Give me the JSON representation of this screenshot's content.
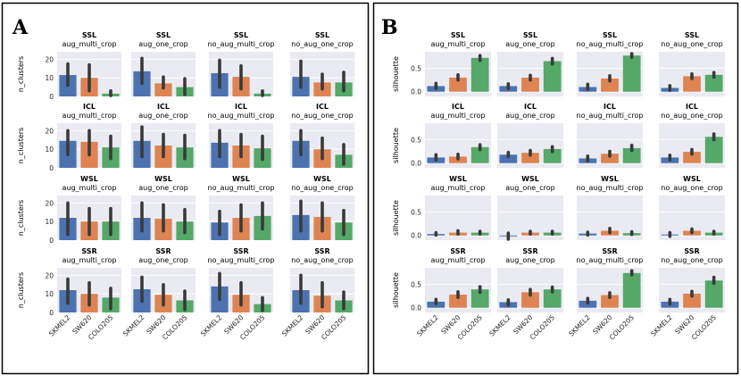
{
  "figure": {
    "panels": [
      "A",
      "B"
    ]
  },
  "colors": {
    "SKMEL2": "#4c72b0",
    "SW620": "#dd8452",
    "COLO205": "#55a868",
    "plot_bg": "#eaeaf2",
    "grid": "#ffffff",
    "error_bar": "#3a3a3a"
  },
  "chart_data": [
    {
      "panel": "A",
      "type": "bar",
      "ylabel": "n_clusters",
      "ylim": [
        0,
        24
      ],
      "yticks": [
        0,
        10,
        20
      ],
      "categories": [
        "SKMEL2",
        "SW620",
        "COLO205"
      ],
      "row_labels": [
        "SSL",
        "ICL",
        "WSL",
        "SSR"
      ],
      "col_labels": [
        "aug_multi_crop",
        "aug_one_crop",
        "no_aug_multi_crop",
        "no_aug_one_crop"
      ],
      "subplots": [
        {
          "method": "SSL",
          "setting": "aug_multi_crop",
          "values": [
            11.5,
            10,
            1.5
          ],
          "errors": [
            [
              6,
              17.5
            ],
            [
              3,
              17
            ],
            [
              0.5,
              3
            ]
          ]
        },
        {
          "method": "SSL",
          "setting": "aug_one_crop",
          "values": [
            13.5,
            7,
            5
          ],
          "errors": [
            [
              7,
              20.5
            ],
            [
              4.5,
              10.5
            ],
            [
              1,
              9.5
            ]
          ]
        },
        {
          "method": "SSL",
          "setting": "no_aug_multi_crop",
          "values": [
            12.5,
            10.5,
            1.5
          ],
          "errors": [
            [
              5,
              19.5
            ],
            [
              4,
              16.5
            ],
            [
              0.5,
              3
            ]
          ]
        },
        {
          "method": "SSL",
          "setting": "no_aug_one_crop",
          "values": [
            10.5,
            7.5,
            7.5
          ],
          "errors": [
            [
              5,
              19
            ],
            [
              4,
              12
            ],
            [
              3,
              13
            ]
          ]
        },
        {
          "method": "ICL",
          "setting": "aug_multi_crop",
          "values": [
            14.5,
            14,
            11
          ],
          "errors": [
            [
              7,
              20
            ],
            [
              7,
              20
            ],
            [
              5,
              17
            ]
          ]
        },
        {
          "method": "ICL",
          "setting": "aug_one_crop",
          "values": [
            14.5,
            12,
            11
          ],
          "errors": [
            [
              6,
              22
            ],
            [
              6,
              18
            ],
            [
              5,
              17.5
            ]
          ]
        },
        {
          "method": "ICL",
          "setting": "no_aug_multi_crop",
          "values": [
            13.5,
            12,
            10.5
          ],
          "errors": [
            [
              6,
              20
            ],
            [
              6,
              18
            ],
            [
              4.5,
              17
            ]
          ]
        },
        {
          "method": "ICL",
          "setting": "no_aug_one_crop",
          "values": [
            14.5,
            10,
            7
          ],
          "errors": [
            [
              7,
              20
            ],
            [
              5,
              16
            ],
            [
              2,
              12.5
            ]
          ]
        },
        {
          "method": "WSL",
          "setting": "aug_multi_crop",
          "values": [
            12,
            10,
            10
          ],
          "errors": [
            [
              3,
              20
            ],
            [
              3,
              17
            ],
            [
              3,
              17
            ]
          ]
        },
        {
          "method": "WSL",
          "setting": "aug_one_crop",
          "values": [
            12,
            11.5,
            10
          ],
          "errors": [
            [
              5,
              20
            ],
            [
              5,
              19
            ],
            [
              4,
              16.5
            ]
          ]
        },
        {
          "method": "WSL",
          "setting": "no_aug_multi_crop",
          "values": [
            9.5,
            12,
            13
          ],
          "errors": [
            [
              3,
              15.5
            ],
            [
              5,
              19
            ],
            [
              6,
              20
            ]
          ]
        },
        {
          "method": "WSL",
          "setting": "no_aug_one_crop",
          "values": [
            13.5,
            12.5,
            9.5
          ],
          "errors": [
            [
              5,
              21
            ],
            [
              5,
              20
            ],
            [
              3,
              16
            ]
          ]
        },
        {
          "method": "SSR",
          "setting": "aug_multi_crop",
          "values": [
            12,
            10,
            8
          ],
          "errors": [
            [
              5,
              18
            ],
            [
              4,
              16
            ],
            [
              2,
              13
            ]
          ]
        },
        {
          "method": "SSR",
          "setting": "aug_one_crop",
          "values": [
            12.5,
            9.5,
            6.5
          ],
          "errors": [
            [
              6,
              19
            ],
            [
              4,
              15
            ],
            [
              1.5,
              11.5
            ]
          ]
        },
        {
          "method": "SSR",
          "setting": "no_aug_multi_crop",
          "values": [
            14,
            9.5,
            4.5
          ],
          "errors": [
            [
              7,
              21
            ],
            [
              4,
              16
            ],
            [
              1,
              8
            ]
          ]
        },
        {
          "method": "SSR",
          "setting": "no_aug_one_crop",
          "values": [
            12,
            9,
            6.5
          ],
          "errors": [
            [
              5,
              20
            ],
            [
              3,
              16
            ],
            [
              2,
              11
            ]
          ]
        }
      ]
    },
    {
      "panel": "B",
      "type": "bar",
      "ylabel": "silhouette",
      "ylim": [
        -0.1,
        0.85
      ],
      "yticks": [
        0.0,
        0.5
      ],
      "categories": [
        "SKMEL2",
        "SW620",
        "COLO205"
      ],
      "row_labels": [
        "SSL",
        "ICL",
        "WSL",
        "SSR"
      ],
      "col_labels": [
        "aug_multi_crop",
        "aug_one_crop",
        "no_aug_multi_crop",
        "no_aug_one_crop"
      ],
      "subplots": [
        {
          "method": "SSL",
          "setting": "aug_multi_crop",
          "values": [
            0.12,
            0.3,
            0.72
          ],
          "errors": [
            [
              0.07,
              0.18
            ],
            [
              0.25,
              0.36
            ],
            [
              0.67,
              0.77
            ]
          ]
        },
        {
          "method": "SSL",
          "setting": "aug_one_crop",
          "values": [
            0.12,
            0.3,
            0.65
          ],
          "errors": [
            [
              0.07,
              0.17
            ],
            [
              0.25,
              0.35
            ],
            [
              0.59,
              0.71
            ]
          ]
        },
        {
          "method": "SSL",
          "setting": "no_aug_multi_crop",
          "values": [
            0.1,
            0.28,
            0.77
          ],
          "errors": [
            [
              0.05,
              0.16
            ],
            [
              0.23,
              0.34
            ],
            [
              0.73,
              0.81
            ]
          ]
        },
        {
          "method": "SSL",
          "setting": "no_aug_one_crop",
          "values": [
            0.08,
            0.33,
            0.36
          ],
          "errors": [
            [
              0.03,
              0.13
            ],
            [
              0.28,
              0.38
            ],
            [
              0.31,
              0.41
            ]
          ]
        },
        {
          "method": "ICL",
          "setting": "aug_multi_crop",
          "values": [
            0.12,
            0.14,
            0.34
          ],
          "errors": [
            [
              0.07,
              0.18
            ],
            [
              0.09,
              0.19
            ],
            [
              0.29,
              0.39
            ]
          ]
        },
        {
          "method": "ICL",
          "setting": "aug_one_crop",
          "values": [
            0.18,
            0.22,
            0.3
          ],
          "errors": [
            [
              0.14,
              0.23
            ],
            [
              0.17,
              0.27
            ],
            [
              0.25,
              0.35
            ]
          ]
        },
        {
          "method": "ICL",
          "setting": "no_aug_multi_crop",
          "values": [
            0.1,
            0.2,
            0.32
          ],
          "errors": [
            [
              0.05,
              0.15
            ],
            [
              0.15,
              0.25
            ],
            [
              0.27,
              0.38
            ]
          ]
        },
        {
          "method": "ICL",
          "setting": "no_aug_one_crop",
          "values": [
            0.12,
            0.24,
            0.56
          ],
          "errors": [
            [
              0.07,
              0.17
            ],
            [
              0.19,
              0.29
            ],
            [
              0.5,
              0.62
            ]
          ]
        },
        {
          "method": "WSL",
          "setting": "aug_multi_crop",
          "values": [
            0.03,
            0.06,
            0.06
          ],
          "errors": [
            [
              0.01,
              0.06
            ],
            [
              0.03,
              0.1
            ],
            [
              0.03,
              0.09
            ]
          ]
        },
        {
          "method": "WSL",
          "setting": "aug_one_crop",
          "values": [
            -0.02,
            0.06,
            0.06
          ],
          "errors": [
            [
              -0.08,
              0.05
            ],
            [
              0.03,
              0.09
            ],
            [
              0.03,
              0.09
            ]
          ]
        },
        {
          "method": "WSL",
          "setting": "no_aug_multi_crop",
          "values": [
            0.04,
            0.1,
            0.05
          ],
          "errors": [
            [
              0.01,
              0.07
            ],
            [
              0.06,
              0.15
            ],
            [
              0.02,
              0.08
            ]
          ]
        },
        {
          "method": "WSL",
          "setting": "no_aug_one_crop",
          "values": [
            0.02,
            0.1,
            0.06
          ],
          "errors": [
            [
              -0.02,
              0.06
            ],
            [
              0.06,
              0.14
            ],
            [
              0.03,
              0.09
            ]
          ]
        },
        {
          "method": "SSR",
          "setting": "aug_multi_crop",
          "values": [
            0.13,
            0.28,
            0.39
          ],
          "errors": [
            [
              0.09,
              0.18
            ],
            [
              0.22,
              0.34
            ],
            [
              0.33,
              0.45
            ]
          ]
        },
        {
          "method": "SSR",
          "setting": "aug_one_crop",
          "values": [
            0.12,
            0.33,
            0.39
          ],
          "errors": [
            [
              0.06,
              0.17
            ],
            [
              0.27,
              0.39
            ],
            [
              0.34,
              0.44
            ]
          ]
        },
        {
          "method": "SSR",
          "setting": "no_aug_multi_crop",
          "values": [
            0.15,
            0.27,
            0.74
          ],
          "errors": [
            [
              0.1,
              0.2
            ],
            [
              0.22,
              0.32
            ],
            [
              0.7,
              0.79
            ]
          ]
        },
        {
          "method": "SSR",
          "setting": "no_aug_one_crop",
          "values": [
            0.13,
            0.3,
            0.58
          ],
          "errors": [
            [
              0.08,
              0.18
            ],
            [
              0.25,
              0.35
            ],
            [
              0.52,
              0.65
            ]
          ]
        }
      ]
    }
  ]
}
